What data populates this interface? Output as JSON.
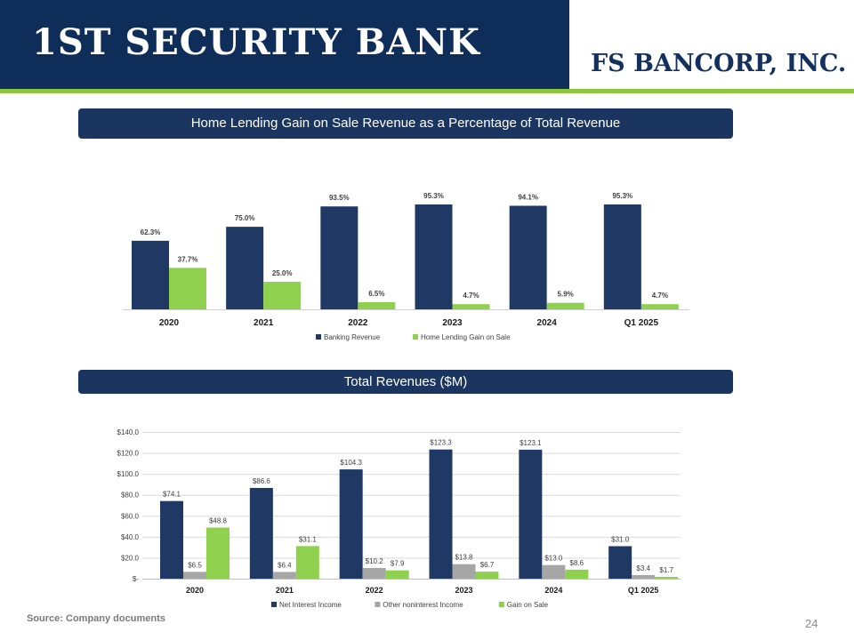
{
  "header": {
    "logo_left_text": "1ST SECURITY BANK",
    "logo_right_text": "FS BANCORP, INC.",
    "colors": {
      "navy": "#0f2d59",
      "green": "#8cc63f"
    }
  },
  "section1": {
    "title": "Home Lending Gain on Sale Revenue as a Percentage of Total Revenue"
  },
  "section2": {
    "title": "Total Revenues ($M)"
  },
  "footer": {
    "source": "Source: Company documents",
    "page_number": "24"
  },
  "chart_data": [
    {
      "type": "bar",
      "title": "Home Lending Gain on Sale Revenue as a Percentage of Total Revenue",
      "categories": [
        "2020",
        "2021",
        "2022",
        "2023",
        "2024",
        "Q1 2025"
      ],
      "series": [
        {
          "name": "Banking Revenue",
          "color": "#1f3864",
          "values": [
            62.3,
            75.0,
            93.5,
            95.3,
            94.1,
            95.3
          ],
          "labels": [
            "62.3%",
            "75.0%",
            "93.5%",
            "95.3%",
            "94.1%",
            "95.3%"
          ]
        },
        {
          "name": "Home Lending Gain on Sale",
          "color": "#8fd14f",
          "values": [
            37.7,
            25.0,
            6.5,
            4.7,
            5.9,
            4.7
          ],
          "labels": [
            "37.7%",
            "25.0%",
            "6.5%",
            "4.7%",
            "5.9%",
            "4.7%"
          ]
        }
      ],
      "ylim": [
        0,
        100
      ],
      "grid": false,
      "legend": "bottom"
    },
    {
      "type": "bar",
      "title": "Total Revenues ($M)",
      "categories": [
        "2020",
        "2021",
        "2022",
        "2023",
        "2024",
        "Q1 2025"
      ],
      "series": [
        {
          "name": "Net Interest Income",
          "color": "#1f3864",
          "values": [
            74.1,
            86.6,
            104.3,
            123.3,
            123.1,
            31.0
          ],
          "labels": [
            "$74.1",
            "$86.6",
            "$104.3",
            "$123.3",
            "$123.1",
            "$31.0"
          ]
        },
        {
          "name": "Other noninterest Income",
          "color": "#a6a6a6",
          "values": [
            6.5,
            6.4,
            10.2,
            13.8,
            13.0,
            3.4
          ],
          "labels": [
            "$6.5",
            "$6.4",
            "$10.2",
            "$13.8",
            "$13.0",
            "$3.4"
          ]
        },
        {
          "name": "Gain on Sale",
          "color": "#8fd14f",
          "values": [
            48.8,
            31.1,
            7.9,
            6.7,
            8.6,
            1.7
          ],
          "labels": [
            "$48.8",
            "$31.1",
            "$7.9",
            "$6.7",
            "$8.6",
            "$1.7"
          ]
        }
      ],
      "ylim": [
        0,
        140
      ],
      "yticks": [
        0,
        20,
        40,
        60,
        80,
        100,
        120,
        140
      ],
      "yticklabels": [
        "$-",
        "$20.0",
        "$40.0",
        "$60.0",
        "$80.0",
        "$100.0",
        "$120.0",
        "$140.0"
      ],
      "grid": true,
      "legend": "bottom"
    }
  ]
}
